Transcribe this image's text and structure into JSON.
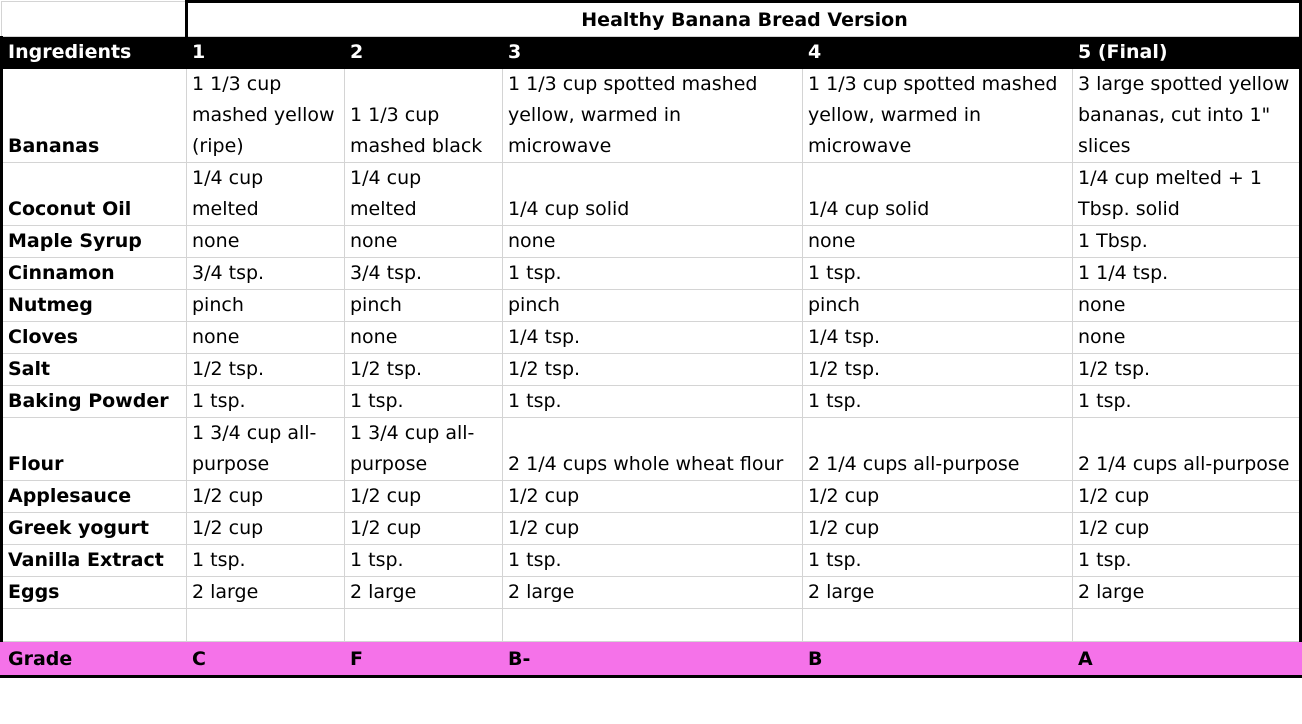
{
  "title": "Healthy Banana Bread Version",
  "columns": [
    "Ingredients",
    "1",
    "2",
    "3",
    "4",
    "5 (Final)"
  ],
  "rows": [
    {
      "label": "Bananas",
      "values": [
        "1 1/3 cup\nmashed yellow\n(ripe)",
        "1 1/3 cup\nmashed black",
        "1 1/3 cup spotted mashed\nyellow, warmed in\nmicrowave",
        "1 1/3 cup spotted mashed\nyellow, warmed in\nmicrowave",
        "3 large spotted yellow\nbananas, cut into 1\"\nslices"
      ]
    },
    {
      "label": "Coconut Oil",
      "values": [
        "1/4 cup\nmelted",
        "1/4 cup\nmelted",
        "1/4 cup solid",
        "1/4 cup solid",
        "1/4 cup melted + 1\nTbsp. solid"
      ]
    },
    {
      "label": "Maple Syrup",
      "values": [
        "none",
        "none",
        "none",
        "none",
        "1 Tbsp."
      ]
    },
    {
      "label": "Cinnamon",
      "values": [
        "3/4 tsp.",
        "3/4 tsp.",
        "1 tsp.",
        "1 tsp.",
        "1 1/4 tsp."
      ]
    },
    {
      "label": "Nutmeg",
      "values": [
        "pinch",
        "pinch",
        "pinch",
        "pinch",
        "none"
      ]
    },
    {
      "label": "Cloves",
      "values": [
        "none",
        "none",
        "1/4 tsp.",
        "1/4 tsp.",
        "none"
      ]
    },
    {
      "label": "Salt",
      "values": [
        "1/2 tsp.",
        "1/2 tsp.",
        "1/2 tsp.",
        "1/2 tsp.",
        "1/2 tsp."
      ]
    },
    {
      "label": "Baking Powder",
      "values": [
        "1 tsp.",
        "1 tsp.",
        "1 tsp.",
        "1 tsp.",
        "1 tsp."
      ]
    },
    {
      "label": "Flour",
      "values": [
        "1 3/4 cup all-\npurpose",
        "1 3/4 cup all-\npurpose",
        "2 1/4 cups whole wheat flour",
        "2 1/4 cups all-purpose",
        "2 1/4 cups all-purpose"
      ]
    },
    {
      "label": "Applesauce",
      "values": [
        "1/2 cup",
        "1/2 cup",
        "1/2 cup",
        "1/2 cup",
        "1/2 cup"
      ]
    },
    {
      "label": "Greek yogurt",
      "values": [
        "1/2 cup",
        "1/2 cup",
        "1/2 cup",
        "1/2 cup",
        "1/2 cup"
      ]
    },
    {
      "label": "Vanilla Extract",
      "values": [
        "1 tsp.",
        "1 tsp.",
        "1 tsp.",
        "1 tsp.",
        "1 tsp."
      ]
    },
    {
      "label": "Eggs",
      "values": [
        "2 large",
        "2 large",
        "2 large",
        "2 large",
        "2 large"
      ]
    }
  ],
  "grade": {
    "label": "Grade",
    "values": [
      "C",
      "F",
      "B-",
      "B",
      "A"
    ]
  },
  "colors": {
    "header_bg": "#000000",
    "header_text": "#ffffff",
    "grade_bg": "#f572e9",
    "gridline": "#d4d4d4"
  }
}
